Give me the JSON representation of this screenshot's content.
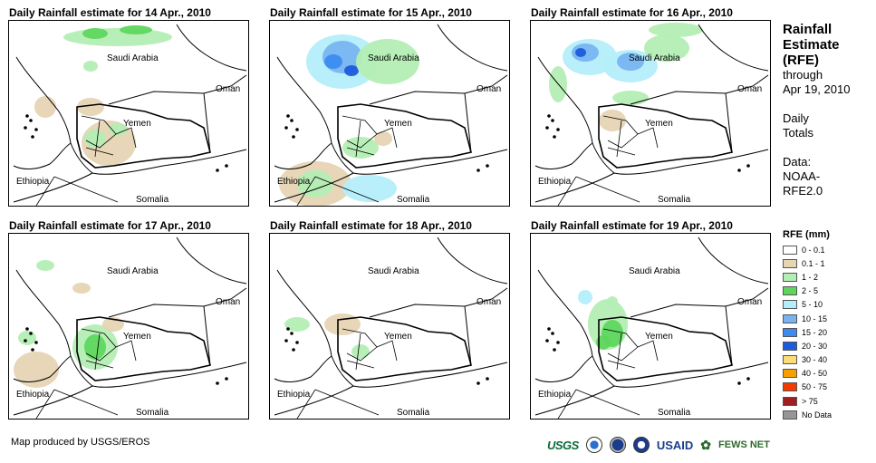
{
  "panels": [
    {
      "title": "Daily Rainfall estimate for 14 Apr., 2010"
    },
    {
      "title": "Daily Rainfall estimate for 15 Apr., 2010"
    },
    {
      "title": "Daily Rainfall estimate for 16 Apr., 2010"
    },
    {
      "title": "Daily Rainfall estimate for 17 Apr., 2010"
    },
    {
      "title": "Daily Rainfall estimate for 18 Apr., 2010"
    },
    {
      "title": "Daily Rainfall estimate for 19 Apr., 2010"
    }
  ],
  "places": {
    "saudi": "Saudi Arabia",
    "oman": "Oman",
    "yemen": "Yemen",
    "ethiopia": "Ethiopia",
    "somalia": "Somalia"
  },
  "side": {
    "title_line1": "Rainfall",
    "title_line2": "Estimate",
    "title_line3": "(RFE)",
    "through": "through",
    "date": "Apr 19, 2010",
    "daily": "Daily",
    "totals": "Totals",
    "data_label": "Data:",
    "data_src1": "NOAA-",
    "data_src2": "RFE2.0"
  },
  "legend": {
    "title": "RFE (mm)",
    "items": [
      {
        "label": "0 - 0.1",
        "color": "#ffffff"
      },
      {
        "label": "0.1 - 1",
        "color": "#e6d4b4"
      },
      {
        "label": "1 - 2",
        "color": "#b4eeb4"
      },
      {
        "label": "2 - 5",
        "color": "#5ed65e"
      },
      {
        "label": "5 - 10",
        "color": "#b4eefa"
      },
      {
        "label": "10 - 15",
        "color": "#78b4f0"
      },
      {
        "label": "15 - 20",
        "color": "#3c8cf0"
      },
      {
        "label": "20 - 30",
        "color": "#1e5adc"
      },
      {
        "label": "30 - 40",
        "color": "#fadc78"
      },
      {
        "label": "40 - 50",
        "color": "#f5a000"
      },
      {
        "label": "50 - 75",
        "color": "#f03c00"
      },
      {
        "label": "> 75",
        "color": "#a01e1e"
      },
      {
        "label": "No Data",
        "color": "#969696"
      }
    ]
  },
  "credit": "Map produced by USGS/EROS",
  "logos": {
    "usgs": "USGS",
    "usaid": "USAID",
    "fews": "FEWS NET"
  }
}
